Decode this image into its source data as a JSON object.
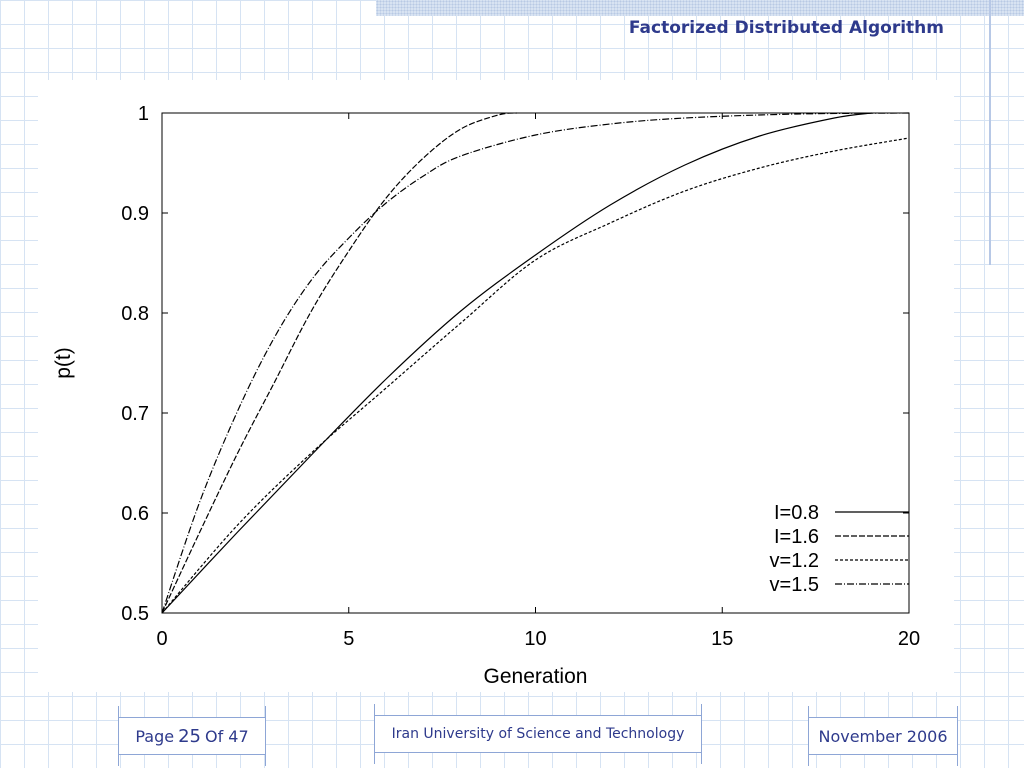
{
  "slide": {
    "title": "Factorized Distributed Algorithm"
  },
  "footer": {
    "page_prefix": "Page",
    "page_number": "25",
    "page_of": "Of 47",
    "institution": "Iran University of Science and Technology",
    "date": "November 2006"
  },
  "chart_data": {
    "type": "line",
    "title": "",
    "xlabel": "Generation",
    "ylabel": "p(t)",
    "xlim": [
      0,
      20
    ],
    "ylim": [
      0.5,
      1
    ],
    "xticks": [
      "0",
      "5",
      "10",
      "15",
      "20"
    ],
    "yticks": [
      "0.5",
      "0.6",
      "0.7",
      "0.8",
      "0.9",
      "1"
    ],
    "grid": false,
    "legend_position": "bottom-right",
    "series": [
      {
        "name": "I=0.8",
        "dash": "solid",
        "x": [
          0,
          2,
          4,
          6,
          8,
          10,
          12,
          14,
          16,
          18,
          19
        ],
        "y": [
          0.5,
          0.58,
          0.658,
          0.734,
          0.802,
          0.858,
          0.908,
          0.948,
          0.977,
          0.995,
          1.0
        ]
      },
      {
        "name": "I=1.6",
        "dash": "long-dash",
        "x": [
          0,
          1,
          2,
          3,
          4,
          5,
          6,
          7,
          8,
          9,
          9.5
        ],
        "y": [
          0.5,
          0.58,
          0.658,
          0.73,
          0.802,
          0.862,
          0.915,
          0.955,
          0.984,
          0.998,
          1.0
        ]
      },
      {
        "name": "v=1.2",
        "dash": "short-dash",
        "x": [
          0,
          2,
          4,
          6,
          8,
          10,
          12,
          14,
          16,
          18,
          20
        ],
        "y": [
          0.5,
          0.587,
          0.66,
          0.725,
          0.79,
          0.853,
          0.89,
          0.922,
          0.945,
          0.962,
          0.975
        ]
      },
      {
        "name": "v=1.5",
        "dash": "dash-dot",
        "x": [
          0,
          1,
          2,
          3,
          4,
          5,
          6,
          7,
          8,
          10,
          12,
          14,
          17,
          20
        ],
        "y": [
          0.5,
          0.61,
          0.7,
          0.775,
          0.833,
          0.875,
          0.91,
          0.937,
          0.957,
          0.978,
          0.989,
          0.995,
          0.999,
          1.0
        ]
      }
    ]
  }
}
